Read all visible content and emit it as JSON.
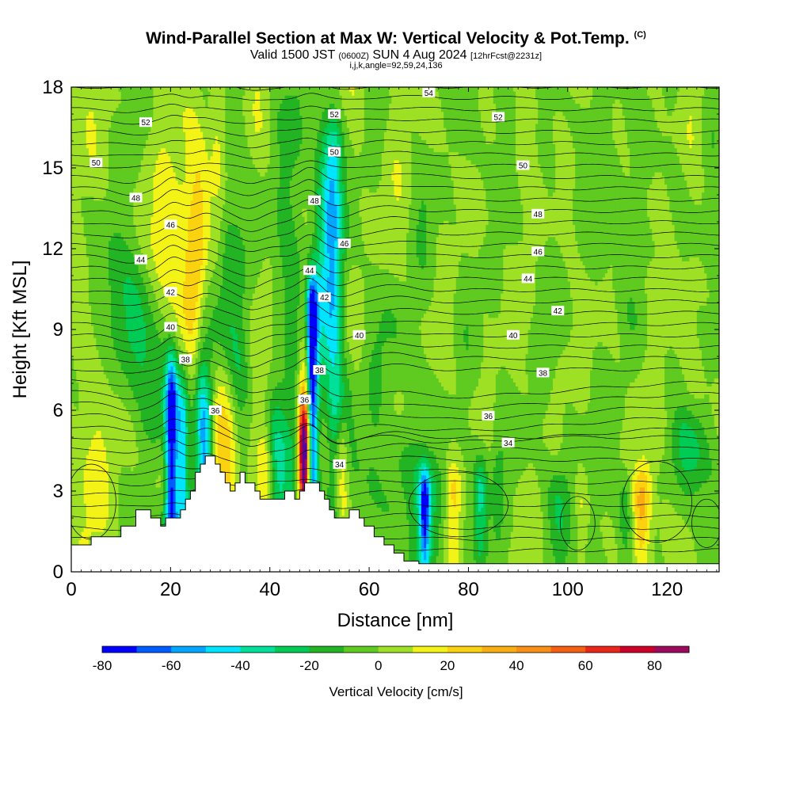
{
  "title": {
    "main": "Wind-Parallel Section at Max W: Vertical Velocity & Pot.Temp.",
    "copyright": "(C)",
    "valid_prefix": "Valid 1500 JST",
    "valid_utc": "(0600Z)",
    "valid_date": "SUN 4 Aug 2024",
    "forecast": "[12hrFcst@2231z]",
    "indices": "i,j,k,angle=92,59,24,136"
  },
  "chart_data": {
    "type": "heatmap",
    "xlabel": "Distance [nm]",
    "ylabel": "Height [Kft MSL]",
    "xlim": [
      0,
      130.5
    ],
    "ylim": [
      0,
      18
    ],
    "x_ticks": [
      0,
      20,
      40,
      60,
      80,
      100,
      120
    ],
    "y_ticks": [
      0,
      3,
      6,
      9,
      12,
      15,
      18
    ],
    "colorbar": {
      "label": "Vertical Velocity [cm/s]",
      "ticks": [
        -80,
        -60,
        -40,
        -20,
        0,
        20,
        40,
        60,
        80
      ],
      "bounds": [
        -80,
        -70,
        -60,
        -50,
        -40,
        -30,
        -20,
        -10,
        0,
        10,
        20,
        30,
        40,
        50,
        60,
        70,
        80,
        90
      ],
      "colors": [
        "#0000ff",
        "#005cff",
        "#00a6ff",
        "#00e5ff",
        "#00e09a",
        "#00cc55",
        "#22b422",
        "#5fca1f",
        "#9ee024",
        "#f3f316",
        "#fbd20f",
        "#f8ae10",
        "#f98f14",
        "#f45f14",
        "#e8261a",
        "#cb0029",
        "#9b0a5d",
        "#5a009a"
      ]
    },
    "terrain": [
      [
        0,
        1.0
      ],
      [
        1,
        1.0
      ],
      [
        2,
        1.0
      ],
      [
        3,
        1.0
      ],
      [
        4,
        1.3
      ],
      [
        5,
        1.3
      ],
      [
        6,
        1.3
      ],
      [
        7,
        1.3
      ],
      [
        8,
        1.3
      ],
      [
        9,
        1.3
      ],
      [
        10,
        1.7
      ],
      [
        11,
        1.7
      ],
      [
        12,
        1.7
      ],
      [
        13,
        2.3
      ],
      [
        14,
        2.3
      ],
      [
        15,
        2.3
      ],
      [
        16,
        2.0
      ],
      [
        17,
        2.0
      ],
      [
        18,
        1.7
      ],
      [
        19,
        2.0
      ],
      [
        20,
        2.0
      ],
      [
        21,
        2.0
      ],
      [
        22,
        2.3
      ],
      [
        23,
        2.7
      ],
      [
        24,
        3.0
      ],
      [
        25,
        3.7
      ],
      [
        26,
        4.0
      ],
      [
        27,
        4.3
      ],
      [
        28,
        4.3
      ],
      [
        29,
        4.0
      ],
      [
        30,
        3.7
      ],
      [
        31,
        3.3
      ],
      [
        32,
        3.0
      ],
      [
        33,
        3.3
      ],
      [
        34,
        3.7
      ],
      [
        35,
        3.3
      ],
      [
        36,
        3.3
      ],
      [
        37,
        3.0
      ],
      [
        38,
        2.7
      ],
      [
        39,
        2.7
      ],
      [
        40,
        2.7
      ],
      [
        41,
        2.7
      ],
      [
        42,
        2.7
      ],
      [
        43,
        3.0
      ],
      [
        44,
        3.0
      ],
      [
        45,
        2.7
      ],
      [
        46,
        3.0
      ],
      [
        47,
        3.3
      ],
      [
        48,
        3.3
      ],
      [
        49,
        3.3
      ],
      [
        50,
        3.0
      ],
      [
        51,
        2.7
      ],
      [
        52,
        2.3
      ],
      [
        53,
        2.0
      ],
      [
        54,
        2.0
      ],
      [
        55,
        2.0
      ],
      [
        56,
        2.3
      ],
      [
        57,
        2.3
      ],
      [
        58,
        2.0
      ],
      [
        59,
        1.7
      ],
      [
        60,
        1.7
      ],
      [
        61,
        1.3
      ],
      [
        62,
        1.3
      ],
      [
        63,
        1.0
      ],
      [
        64,
        1.0
      ],
      [
        65,
        0.7
      ],
      [
        66,
        0.7
      ],
      [
        67,
        0.4
      ],
      [
        68,
        0.4
      ],
      [
        69,
        0.4
      ],
      [
        70,
        0.3
      ],
      [
        130.5,
        0.3
      ]
    ],
    "theta_labels": [
      {
        "text": "54",
        "x": 72,
        "y": 17.8
      },
      {
        "text": "52",
        "x": 15,
        "y": 16.7
      },
      {
        "text": "52",
        "x": 53,
        "y": 17.0
      },
      {
        "text": "52",
        "x": 86,
        "y": 16.9
      },
      {
        "text": "50",
        "x": 5,
        "y": 15.2
      },
      {
        "text": "50",
        "x": 53,
        "y": 15.6
      },
      {
        "text": "50",
        "x": 91,
        "y": 15.1
      },
      {
        "text": "48",
        "x": 13,
        "y": 13.9
      },
      {
        "text": "48",
        "x": 49,
        "y": 13.8
      },
      {
        "text": "48",
        "x": 94,
        "y": 13.3
      },
      {
        "text": "46",
        "x": 20,
        "y": 12.9
      },
      {
        "text": "46",
        "x": 55,
        "y": 12.2
      },
      {
        "text": "46",
        "x": 94,
        "y": 11.9
      },
      {
        "text": "44",
        "x": 14,
        "y": 11.6
      },
      {
        "text": "44",
        "x": 48,
        "y": 11.2
      },
      {
        "text": "44",
        "x": 92,
        "y": 10.9
      },
      {
        "text": "42",
        "x": 20,
        "y": 10.4
      },
      {
        "text": "42",
        "x": 51,
        "y": 10.2
      },
      {
        "text": "42",
        "x": 98,
        "y": 9.7
      },
      {
        "text": "40",
        "x": 20,
        "y": 9.1
      },
      {
        "text": "40",
        "x": 58,
        "y": 8.8
      },
      {
        "text": "40",
        "x": 89,
        "y": 8.8
      },
      {
        "text": "38",
        "x": 23,
        "y": 7.9
      },
      {
        "text": "38",
        "x": 50,
        "y": 7.5
      },
      {
        "text": "38",
        "x": 95,
        "y": 7.4
      },
      {
        "text": "36",
        "x": 29,
        "y": 6.0
      },
      {
        "text": "36",
        "x": 47,
        "y": 6.4
      },
      {
        "text": "36",
        "x": 84,
        "y": 5.8
      },
      {
        "text": "34",
        "x": 88,
        "y": 4.8
      },
      {
        "text": "34",
        "x": 54,
        "y": 4.0
      }
    ]
  }
}
